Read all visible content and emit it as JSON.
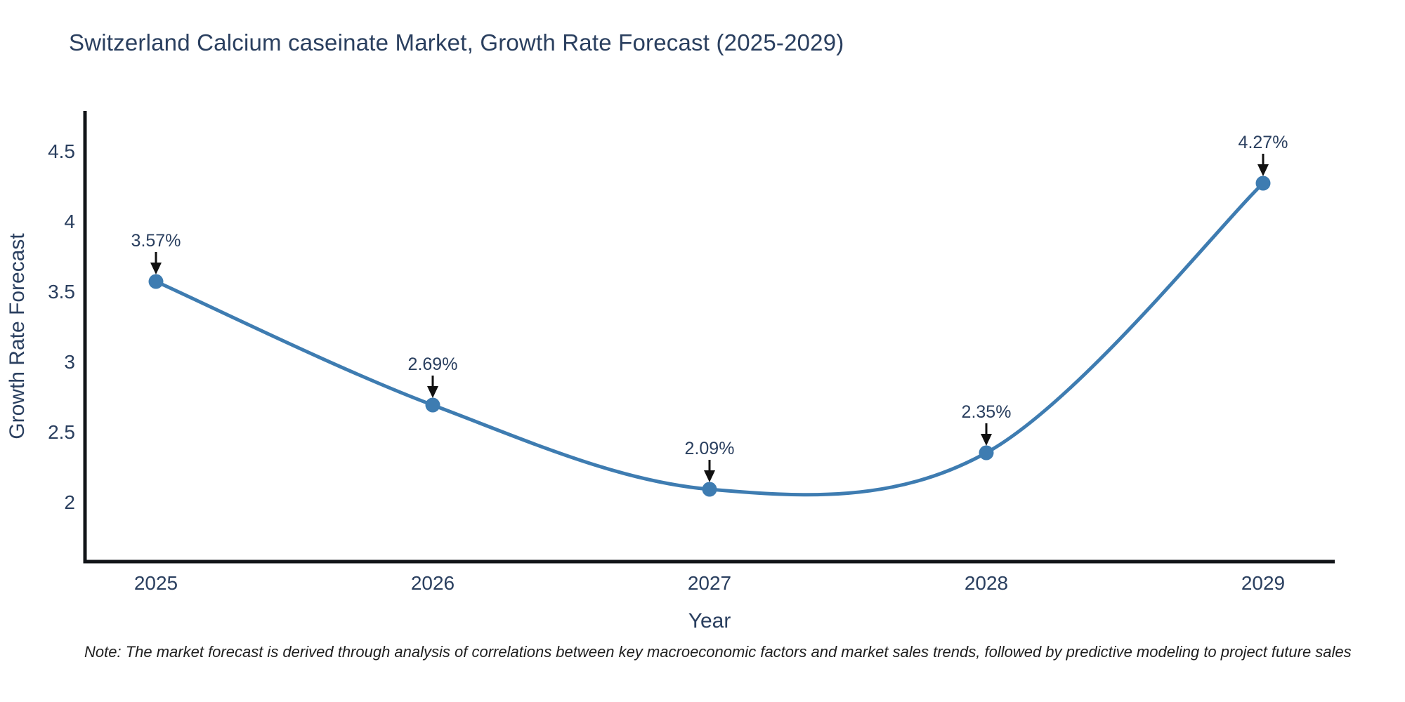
{
  "page": {
    "note": "Note: The market forecast is derived through analysis of correlations between key macroeconomic factors and market sales trends, followed by predictive modeling to project future sales"
  },
  "chart_data": {
    "type": "line",
    "title": "Switzerland Calcium caseinate Market, Growth Rate Forecast (2025-2029)",
    "xlabel": "Year",
    "ylabel": "Growth Rate Forecast",
    "categories": [
      "2025",
      "2026",
      "2027",
      "2028",
      "2029"
    ],
    "series": [
      {
        "name": "Growth Rate Forecast",
        "values": [
          3.57,
          2.69,
          2.09,
          2.35,
          4.27
        ]
      }
    ],
    "point_labels": [
      "3.57%",
      "2.69%",
      "2.09%",
      "2.35%",
      "4.27%"
    ],
    "yticks": [
      2,
      2.5,
      3,
      3.5,
      4,
      4.5
    ],
    "ylim": [
      1.58,
      4.78
    ],
    "line_shape": "spline",
    "grid": false,
    "legend": "none",
    "colors": {
      "line": "#3e7cb1",
      "marker": "#3e7cb1",
      "text": "#2a3f5f",
      "axis": "#111418",
      "arrow": "#111111",
      "title": "#2a3f5f",
      "note": "#1f1f1f"
    }
  }
}
